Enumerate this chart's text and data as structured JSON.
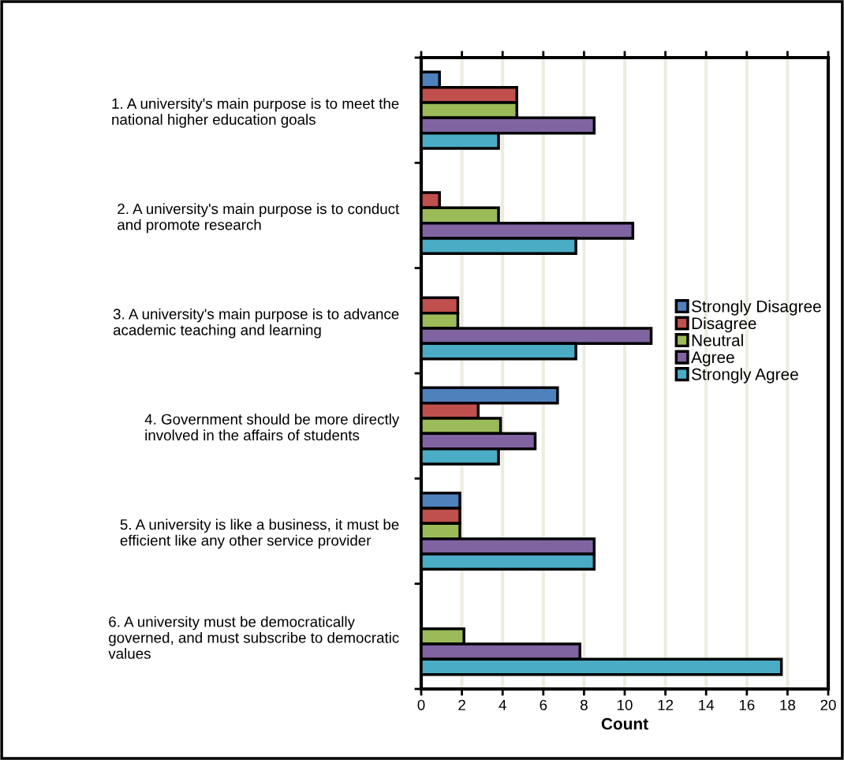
{
  "chart_data": {
    "type": "bar",
    "orientation": "horizontal",
    "xlabel": "Count",
    "categories": [
      "1. A university's main purpose is to meet the\nnational higher education goals",
      "2. A university's main purpose is to conduct\nand promote research",
      "3. A university's main purpose is to advance\nacademic teaching and learning",
      "4. Government should be more directly\ninvolved in the affairs of students",
      "5. A university is like a business, it must be\nefficient like any other service provider",
      "6. A university must be democratically\ngoverned, and must subscribe to democratic\nvalues"
    ],
    "series": [
      {
        "name": "Strongly Disagree",
        "color": "#4f81bd",
        "values": [
          0.9,
          null,
          null,
          6.7,
          1.9,
          null
        ]
      },
      {
        "name": "Disagree",
        "color": "#c0504d",
        "values": [
          4.7,
          0.9,
          1.8,
          2.8,
          1.9,
          null
        ]
      },
      {
        "name": "Neutral",
        "color": "#9bbb59",
        "values": [
          4.7,
          3.8,
          1.8,
          3.9,
          1.9,
          2.1
        ]
      },
      {
        "name": "Agree",
        "color": "#8064a2",
        "values": [
          8.5,
          10.4,
          11.3,
          5.6,
          8.5,
          7.8
        ]
      },
      {
        "name": "Strongly Agree",
        "color": "#4bacc6",
        "values": [
          3.8,
          7.6,
          7.6,
          3.8,
          8.5,
          17.7
        ]
      }
    ],
    "xlim": [
      0,
      20
    ],
    "xticks": [
      0,
      2,
      4,
      6,
      8,
      10,
      12,
      14,
      16,
      18,
      20
    ],
    "grid": "x",
    "legend": "right"
  }
}
